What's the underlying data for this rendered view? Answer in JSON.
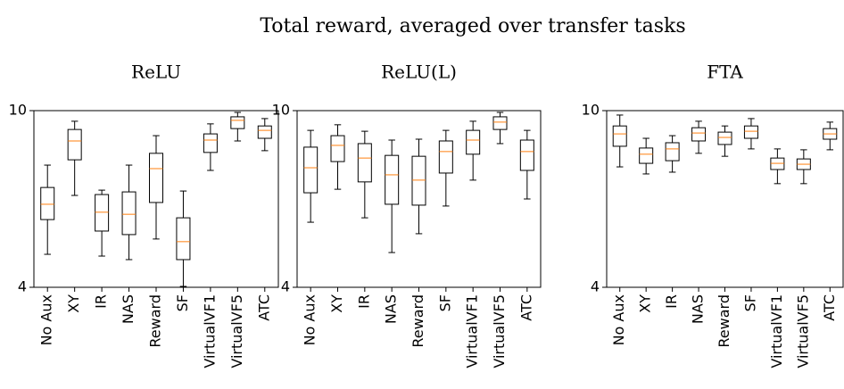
{
  "suptitle": "Total reward, averaged over transfer tasks",
  "chart_data": [
    {
      "type": "box",
      "title": "ReLU",
      "categories": [
        "No Aux",
        "XY",
        "IR",
        "NAS",
        "Reward",
        "SF",
        "VirtualVF1",
        "VirtualVF5",
        "ATC"
      ],
      "whisker_low": [
        5.12,
        7.12,
        5.06,
        4.94,
        5.64,
        4.03,
        7.97,
        8.97,
        8.64
      ],
      "q1": [
        6.3,
        8.33,
        5.91,
        5.79,
        6.88,
        4.94,
        8.58,
        9.39,
        9.06
      ],
      "median": [
        6.82,
        8.97,
        6.55,
        6.48,
        8.03,
        5.55,
        9.0,
        9.67,
        9.33
      ],
      "q3": [
        7.39,
        9.36,
        7.15,
        7.24,
        8.55,
        6.36,
        9.21,
        9.79,
        9.48
      ],
      "whisker_high": [
        8.15,
        9.64,
        7.3,
        8.15,
        9.15,
        7.27,
        9.55,
        9.94,
        9.73
      ],
      "ylim": [
        4,
        10
      ],
      "yticks": [
        4,
        10
      ],
      "box_color": "#000000",
      "median_color": "#ff7f0e"
    },
    {
      "type": "box",
      "title": "ReLU(L)",
      "categories": [
        "No Aux",
        "XY",
        "IR",
        "NAS",
        "Reward",
        "SF",
        "VirtualVF1",
        "VirtualVF5",
        "ATC"
      ],
      "whisker_low": [
        6.21,
        7.33,
        6.36,
        5.18,
        5.82,
        6.76,
        7.64,
        8.88,
        7.0
      ],
      "q1": [
        7.21,
        8.27,
        7.58,
        6.82,
        6.79,
        7.88,
        8.52,
        9.36,
        7.97
      ],
      "median": [
        8.06,
        8.82,
        8.39,
        7.82,
        7.64,
        8.61,
        9.0,
        9.61,
        8.61
      ],
      "q3": [
        8.76,
        9.15,
        8.88,
        8.48,
        8.45,
        8.97,
        9.33,
        9.79,
        9.0
      ],
      "whisker_high": [
        9.33,
        9.52,
        9.3,
        9.0,
        9.03,
        9.33,
        9.64,
        9.94,
        9.33
      ],
      "ylim": [
        4,
        10
      ],
      "yticks": [
        4,
        10
      ],
      "box_color": "#000000",
      "median_color": "#ff7f0e"
    },
    {
      "type": "box",
      "title": "FTA",
      "categories": [
        "No Aux",
        "XY",
        "IR",
        "NAS",
        "Reward",
        "SF",
        "VirtualVF1",
        "VirtualVF5",
        "ATC"
      ],
      "whisker_low": [
        8.09,
        7.85,
        7.91,
        8.55,
        8.45,
        8.7,
        7.52,
        7.52,
        8.67
      ],
      "q1": [
        8.79,
        8.21,
        8.3,
        8.97,
        8.85,
        9.06,
        8.0,
        8.0,
        9.03
      ],
      "median": [
        9.21,
        8.52,
        8.7,
        9.24,
        9.09,
        9.3,
        8.21,
        8.18,
        9.21
      ],
      "q3": [
        9.48,
        8.73,
        8.91,
        9.42,
        9.27,
        9.48,
        8.39,
        8.36,
        9.39
      ],
      "whisker_high": [
        9.85,
        9.06,
        9.15,
        9.64,
        9.48,
        9.73,
        8.7,
        8.67,
        9.61
      ],
      "ylim": [
        4,
        10
      ],
      "yticks": [
        4,
        10
      ],
      "box_color": "#000000",
      "median_color": "#ff7f0e"
    }
  ]
}
